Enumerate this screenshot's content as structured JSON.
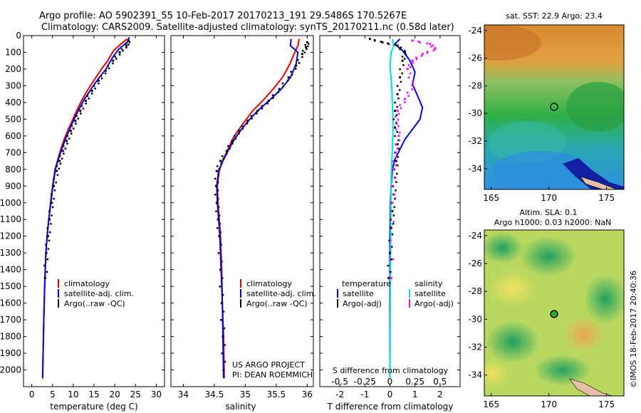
{
  "header": {
    "line1": "Argo profile: AO 5902391_55 10-Feb-2017 20170213_191 29.5486S 170.5267E",
    "line2": "Climatology: CARS2009. Satellite-adjusted climatology: synTS_20170211.nc (0.58d later)"
  },
  "chart_data": [
    {
      "type": "line",
      "id": "temperature-profile",
      "xlabel": "temperature (deg C)",
      "xlim": [
        -2,
        32
      ],
      "x_ticks": [
        "0",
        "5",
        "10",
        "15",
        "20",
        "25",
        "30"
      ],
      "ylim": [
        0,
        2100
      ],
      "y_reversed": true,
      "y_ticks": [
        "0",
        "100",
        "200",
        "300",
        "400",
        "500",
        "600",
        "700",
        "800",
        "900",
        "1000",
        "1100",
        "1200",
        "1300",
        "1400",
        "1500",
        "1600",
        "1700",
        "1800",
        "1900",
        "2000"
      ],
      "legend": [
        "climatology",
        "satellite-adj. clim.",
        "Argo(..raw -QC)"
      ],
      "legend_placement": "lower-right",
      "series": [
        {
          "name": "climatology",
          "color": "#dd0000",
          "x": [
            23.0,
            21.5,
            19.7,
            18.3,
            16.8,
            15.2,
            13.6,
            12.2,
            11.0,
            9.9,
            8.8,
            7.8,
            7.0,
            6.3,
            5.6,
            5.0,
            4.5,
            4.1,
            3.7,
            3.4,
            3.1,
            2.9,
            2.6
          ],
          "y": [
            20,
            50,
            90,
            150,
            200,
            260,
            320,
            380,
            440,
            500,
            560,
            620,
            680,
            740,
            800,
            900,
            1000,
            1100,
            1200,
            1300,
            1500,
            1700,
            2050
          ]
        },
        {
          "name": "satellite-adj. clim.",
          "color": "#0000dd",
          "x": [
            23.5,
            23.0,
            21.0,
            19.5,
            17.9,
            16.0,
            14.3,
            12.7,
            11.4,
            10.2,
            9.1,
            8.1,
            7.2,
            6.4,
            5.7,
            5.1,
            4.6,
            4.1,
            3.7,
            3.4,
            3.1,
            2.9,
            2.6
          ],
          "y": [
            10,
            40,
            80,
            130,
            200,
            260,
            320,
            380,
            440,
            500,
            560,
            620,
            680,
            740,
            800,
            900,
            1000,
            1100,
            1200,
            1300,
            1500,
            1700,
            2050
          ]
        },
        {
          "name": "Argo(..raw -QC)",
          "color": "#000000",
          "x": [
            23.3,
            22.8,
            21.2,
            19.6,
            17.8,
            16.1,
            14.5,
            13.0,
            11.7,
            10.5,
            9.4,
            8.4,
            7.5,
            6.7,
            6.0,
            5.3,
            4.8,
            4.3,
            3.9,
            3.5,
            3.2
          ],
          "y": [
            30,
            60,
            100,
            150,
            210,
            270,
            330,
            390,
            450,
            510,
            570,
            630,
            690,
            750,
            810,
            900,
            1000,
            1100,
            1200,
            1300,
            1450
          ]
        }
      ]
    },
    {
      "type": "line",
      "id": "salinity-profile",
      "xlabel": "salinity",
      "xlim": [
        33.8,
        36.1
      ],
      "x_ticks": [
        "34",
        "34.5",
        "35",
        "35.5",
        "36"
      ],
      "ylim": [
        0,
        2100
      ],
      "y_reversed": true,
      "legend": [
        "climatology",
        "satellite-adj. clim.",
        "Argo(..raw -QC)"
      ],
      "legend_placement": "lower-right",
      "annotation": [
        "US ARGO PROJECT",
        "PI: DEAN ROEMMICH"
      ],
      "series": [
        {
          "name": "climatology",
          "color": "#dd0000",
          "x": [
            35.87,
            35.85,
            35.8,
            35.72,
            35.6,
            35.45,
            35.28,
            35.12,
            35.0,
            34.88,
            34.78,
            34.71,
            34.63,
            34.58,
            34.55,
            34.56,
            34.58,
            34.6,
            34.62,
            34.63,
            34.65,
            34.66
          ],
          "y": [
            20,
            60,
            100,
            170,
            250,
            320,
            390,
            450,
            510,
            570,
            630,
            690,
            750,
            810,
            900,
            1000,
            1100,
            1200,
            1400,
            1600,
            1800,
            2050
          ]
        },
        {
          "name": "satellite-adj. clim.",
          "color": "#0000dd",
          "x": [
            35.74,
            35.73,
            35.85,
            35.82,
            35.73,
            35.58,
            35.38,
            35.2,
            35.05,
            34.92,
            34.81,
            34.72,
            34.64,
            34.57,
            34.54,
            34.55,
            34.57,
            34.59,
            34.61,
            34.63,
            34.64,
            34.65
          ],
          "y": [
            20,
            60,
            100,
            170,
            250,
            320,
            390,
            450,
            510,
            570,
            630,
            690,
            750,
            810,
            900,
            1000,
            1100,
            1200,
            1400,
            1600,
            1800,
            2050
          ]
        },
        {
          "name": "Argo(..raw -QC)",
          "color": "#000000",
          "x": [
            36.0,
            35.98,
            35.92,
            35.82,
            35.7,
            35.55,
            35.38,
            35.2,
            35.04,
            34.9,
            34.79,
            34.7,
            34.6,
            34.54,
            34.53,
            34.54,
            34.56,
            34.58,
            34.6,
            34.62,
            34.64,
            34.65
          ],
          "y": [
            40,
            70,
            110,
            180,
            250,
            320,
            390,
            450,
            510,
            570,
            630,
            690,
            750,
            810,
            900,
            1000,
            1100,
            1200,
            1400,
            1600,
            1800,
            2000
          ]
        }
      ]
    },
    {
      "type": "line",
      "id": "difference-profile",
      "xlabel": "T difference from climatology",
      "xlim": [
        -2.8,
        2.8
      ],
      "x_ticks": [
        "-2",
        "-1",
        "0",
        "1",
        "2"
      ],
      "top_label": "S difference from climatology",
      "top_ticks": [
        "-0.5",
        "-0.25",
        "0",
        "0.25",
        "0.5"
      ],
      "ylim": [
        0,
        2100
      ],
      "y_reversed": true,
      "legend_headers": [
        "temperature",
        "salinity"
      ],
      "legend": [
        "satellite",
        "Argo(-adj)",
        "satellite",
        "Argo(-adj)"
      ],
      "series": [
        {
          "name": "temperature satellite",
          "color": "#0000dd",
          "x": [
            0.4,
            0.2,
            0.5,
            0.8,
            1.0,
            0.9,
            1.1,
            1.3,
            1.2,
            0.9,
            0.6,
            0.4,
            0.2,
            0.1,
            0.05,
            0.02,
            0.0,
            0.0,
            0.0,
            0.0
          ],
          "y": [
            20,
            50,
            90,
            150,
            220,
            290,
            360,
            430,
            500,
            560,
            620,
            680,
            740,
            800,
            900,
            1000,
            1200,
            1400,
            1700,
            2050
          ]
        },
        {
          "name": "salinity satellite",
          "color": "#00dddd",
          "x": [
            0.1,
            0.15,
            0.05,
            0.0,
            0.05,
            0.08,
            0.1,
            0.12,
            0.12,
            0.1,
            0.08,
            0.06,
            0.05,
            0.04,
            0.03,
            0.02,
            0.01,
            0.0
          ],
          "y": [
            20,
            60,
            100,
            180,
            260,
            340,
            420,
            500,
            580,
            660,
            740,
            820,
            900,
            1000,
            1200,
            1400,
            1700,
            2050
          ]
        },
        {
          "name": "temperature Argo(-adj)",
          "color": "#000000",
          "x": [
            -0.8,
            -0.3,
            0.3,
            0.6,
            0.5,
            0.4,
            0.3,
            0.2,
            0.2,
            0.3,
            0.25,
            0.2,
            0.15,
            0.1,
            0.05,
            0.0,
            -0.05
          ],
          "y": [
            20,
            40,
            60,
            100,
            150,
            250,
            350,
            450,
            550,
            650,
            750,
            850,
            950,
            1050,
            1150,
            1300,
            1450
          ]
        },
        {
          "name": "salinity Argo(-adj)",
          "color": "#ff00ff",
          "x": [
            0.9,
            1.6,
            1.8,
            1.3,
            0.9,
            0.7,
            0.9,
            0.6,
            0.3,
            0.25,
            0.35,
            0.2,
            0.15,
            0.1,
            0.05
          ],
          "y": [
            30,
            50,
            80,
            110,
            150,
            200,
            300,
            380,
            450,
            520,
            600,
            700,
            800,
            1000,
            1450
          ]
        }
      ]
    },
    {
      "type": "heatmap",
      "id": "sst-map",
      "title": "sat. SST: 22.9  Argo: 23.4",
      "x_ticks": [
        "165",
        "170",
        "175"
      ],
      "y_ticks": [
        "-24",
        "-26",
        "-28",
        "-30",
        "-32",
        "-34"
      ],
      "marker": {
        "lon": 170.53,
        "lat": -29.55
      }
    },
    {
      "type": "heatmap",
      "id": "sla-map",
      "title_line1": "Altim. SLA: 0.1",
      "title_line2": "Argo h1000: 0.03 h2000: NaN",
      "x_ticks": [
        "165",
        "170",
        "175"
      ],
      "y_ticks": [
        "-24",
        "-26",
        "-28",
        "-30",
        "-32",
        "-34"
      ],
      "marker": {
        "lon": 170.53,
        "lat": -29.55
      }
    }
  ],
  "footer": {
    "credit": "©IMOS 18-Feb-2017 20:40:36"
  }
}
